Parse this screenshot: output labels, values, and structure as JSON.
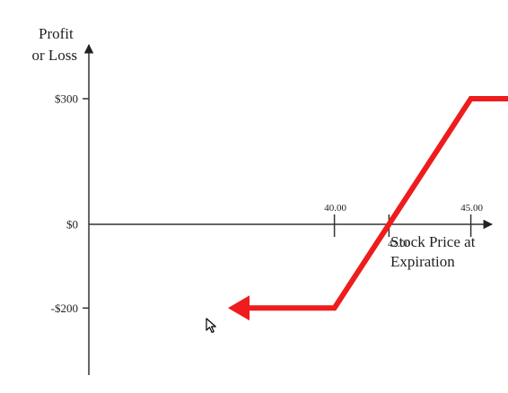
{
  "chart_data": {
    "type": "line",
    "ylabel": [
      "Profit",
      "or Loss"
    ],
    "xlabel": [
      "Stock Price at",
      "Expiration"
    ],
    "xlim": [
      31,
      50
    ],
    "ylim": [
      -330,
      450
    ],
    "y_ticks": [
      {
        "value": 300,
        "label": "$300"
      },
      {
        "value": 0,
        "label": "$0"
      },
      {
        "value": -200,
        "label": "-$200"
      }
    ],
    "x_ticks": [
      {
        "value": 40,
        "label": "40.00",
        "placement": "above"
      },
      {
        "value": 42,
        "label": "42.00",
        "placement": "below"
      },
      {
        "value": 45,
        "label": "45.00",
        "placement": "above"
      }
    ],
    "series": [
      {
        "color": "#ee1c1c",
        "points": [
          [
            36.1,
            -200
          ],
          [
            40,
            -200
          ],
          [
            45,
            300
          ],
          [
            48.7,
            300
          ]
        ],
        "arrows": [
          "start",
          "end"
        ]
      }
    ]
  },
  "cursor": {
    "icon": "mouse-pointer-icon"
  }
}
